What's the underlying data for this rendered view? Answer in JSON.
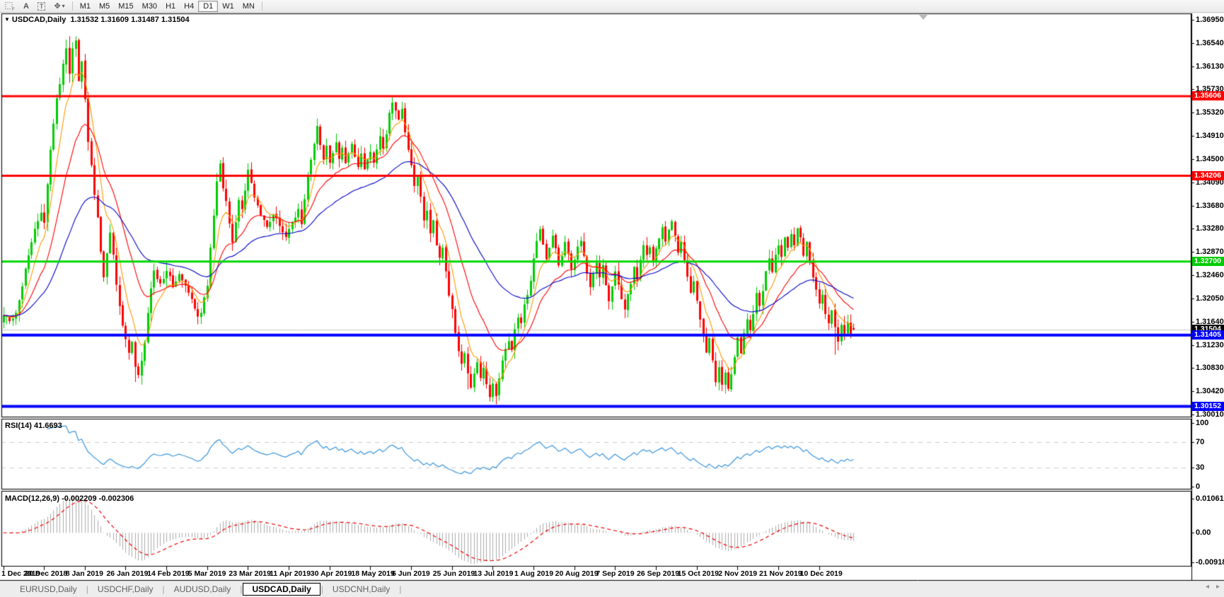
{
  "toolbar": {
    "tool_a_label": "A",
    "tool_t_label": "T",
    "timeframes": [
      "M1",
      "M5",
      "M15",
      "M30",
      "H1",
      "H4",
      "D1",
      "W1",
      "MN"
    ],
    "active_timeframe": "D1"
  },
  "header": {
    "title": "USDCAD,Daily",
    "ohlc": "1.31532 1.31609 1.31487 1.31504"
  },
  "panels": {
    "rsi_label": "RSI(14) 41.6693",
    "macd_label": "MACD(12,26,9) -0.002209 -0.002306"
  },
  "price_axis": {
    "labels": [
      "1.36950",
      "1.36540",
      "1.36130",
      "1.35730",
      "1.35320",
      "1.34910",
      "1.34500",
      "1.34090",
      "1.33680",
      "1.33280",
      "1.32870",
      "1.32460",
      "1.32050",
      "1.31640",
      "1.31230",
      "1.30830",
      "1.30420",
      "1.30010"
    ]
  },
  "rsi_axis": {
    "labels": [
      {
        "text": "100",
        "value": 100
      },
      {
        "text": "70",
        "value": 70
      },
      {
        "text": "30",
        "value": 30
      },
      {
        "text": "0",
        "value": 0
      }
    ]
  },
  "macd_axis": {
    "labels": [
      {
        "text": "0.010615",
        "value": 0.010615
      },
      {
        "text": "0.00",
        "value": 0.0
      },
      {
        "text": "-0.009181",
        "value": -0.009181
      }
    ]
  },
  "time_axis": {
    "labels": [
      "1 Dec 2018",
      "20 Dec 2018",
      "8 Jan 2019",
      "26 Jan 2019",
      "14 Feb 2019",
      "5 Mar 2019",
      "23 Mar 2019",
      "11 Apr 2019",
      "30 Apr 2019",
      "18 May 2019",
      "6 Jun 2019",
      "25 Jun 2019",
      "13 Jul 2019",
      "1 Aug 2019",
      "20 Aug 2019",
      "7 Sep 2019",
      "26 Sep 2019",
      "15 Oct 2019",
      "2 Nov 2019",
      "21 Nov 2019",
      "10 Dec 2019"
    ]
  },
  "tabs": {
    "items": [
      "EURUSD,Daily",
      "USDCHF,Daily",
      "AUDUSD,Daily",
      "USDCAD,Daily",
      "USDCNH,Daily"
    ],
    "active": "USDCAD,Daily"
  },
  "colors": {
    "candle_up": "#00cc00",
    "candle_down": "#ff0000",
    "ma_fast": "#ff9900",
    "ma_medium": "#ff0000",
    "ma_slow": "#0000cc",
    "rsi_line": "#3c96dc",
    "rsi_levels": "#cccccc",
    "macd_histogram": "#ababab",
    "macd_signal": "#ee0000",
    "current_price_line": "#c8c8c8"
  },
  "chart_data": {
    "type": "candlestick",
    "symbol": "USDCAD",
    "timeframe": "Daily",
    "current": {
      "open": 1.31532,
      "high": 1.31609,
      "low": 1.31487,
      "close": 1.31504
    },
    "y_range": [
      1.2996,
      1.3706
    ],
    "x_range": [
      "1 Dec 2018",
      "17 Dec 2019"
    ],
    "candle_count": 272,
    "candles_per_time_tick": 13,
    "horizontal_lines": [
      {
        "price": 1.35606,
        "label": "1.35606",
        "line_color": "#ff0000",
        "badge_bg": "#ff0000",
        "badge_fg": "#ffffff",
        "thickness": 3
      },
      {
        "price": 1.34206,
        "label": "1.34206",
        "line_color": "#ff0000",
        "badge_bg": "#ff0000",
        "badge_fg": "#ffffff",
        "thickness": 3
      },
      {
        "price": 1.327,
        "label": "1.32700",
        "line_color": "#00d800",
        "badge_bg": "#00cc00",
        "badge_fg": "#ffffff",
        "thickness": 3
      },
      {
        "price": 1.31504,
        "label": "1.31504",
        "line_color": "#c8c8c8",
        "badge_bg": "#000000",
        "badge_fg": "#ffffff",
        "thickness": 1
      },
      {
        "price": 1.31405,
        "label": "1.31405",
        "line_color": "#0000ff",
        "badge_bg": "#0000ff",
        "badge_fg": "#ffffff",
        "thickness": 4
      },
      {
        "price": 1.30152,
        "label": "1.30152",
        "line_color": "#0000ff",
        "badge_bg": "#0000ff",
        "badge_fg": "#ffffff",
        "thickness": 4
      }
    ],
    "close_waypoints": [
      [
        0,
        1.3175
      ],
      [
        2,
        1.3165
      ],
      [
        4,
        1.318
      ],
      [
        6,
        1.323
      ],
      [
        8,
        1.328
      ],
      [
        10,
        1.333
      ],
      [
        12,
        1.3355
      ],
      [
        13,
        1.3335
      ],
      [
        15,
        1.347
      ],
      [
        17,
        1.3555
      ],
      [
        19,
        1.3615
      ],
      [
        20,
        1.3648
      ],
      [
        21,
        1.3598
      ],
      [
        22,
        1.3642
      ],
      [
        23,
        1.3655
      ],
      [
        24,
        1.3588
      ],
      [
        25,
        1.3625
      ],
      [
        26,
        1.3555
      ],
      [
        27,
        1.348
      ],
      [
        28,
        1.344
      ],
      [
        29,
        1.3385
      ],
      [
        30,
        1.335
      ],
      [
        31,
        1.329
      ],
      [
        32,
        1.3245
      ],
      [
        33,
        1.3285
      ],
      [
        34,
        1.332
      ],
      [
        35,
        1.328
      ],
      [
        36,
        1.323
      ],
      [
        37,
        1.319
      ],
      [
        38,
        1.3155
      ],
      [
        39,
        1.313
      ],
      [
        40,
        1.3105
      ],
      [
        41,
        1.313
      ],
      [
        42,
        1.3082
      ],
      [
        43,
        1.3068
      ],
      [
        44,
        1.3095
      ],
      [
        45,
        1.313
      ],
      [
        46,
        1.318
      ],
      [
        47,
        1.322
      ],
      [
        48,
        1.325
      ],
      [
        50,
        1.3228
      ],
      [
        52,
        1.3255
      ],
      [
        54,
        1.3228
      ],
      [
        56,
        1.325
      ],
      [
        58,
        1.3228
      ],
      [
        60,
        1.32
      ],
      [
        62,
        1.3172
      ],
      [
        63,
        1.318
      ],
      [
        64,
        1.3208
      ],
      [
        65,
        1.3228
      ],
      [
        66,
        1.329
      ],
      [
        67,
        1.3355
      ],
      [
        68,
        1.3415
      ],
      [
        69,
        1.344
      ],
      [
        70,
        1.3402
      ],
      [
        71,
        1.3372
      ],
      [
        72,
        1.3335
      ],
      [
        73,
        1.3302
      ],
      [
        74,
        1.3338
      ],
      [
        75,
        1.3378
      ],
      [
        76,
        1.3358
      ],
      [
        77,
        1.3398
      ],
      [
        78,
        1.3428
      ],
      [
        79,
        1.3408
      ],
      [
        80,
        1.3382
      ],
      [
        82,
        1.3352
      ],
      [
        84,
        1.3332
      ],
      [
        86,
        1.3355
      ],
      [
        88,
        1.3332
      ],
      [
        90,
        1.3312
      ],
      [
        92,
        1.3338
      ],
      [
        94,
        1.3358
      ],
      [
        95,
        1.3338
      ],
      [
        96,
        1.3378
      ],
      [
        97,
        1.3418
      ],
      [
        98,
        1.3448
      ],
      [
        99,
        1.3478
      ],
      [
        100,
        1.3505
      ],
      [
        101,
        1.3478
      ],
      [
        102,
        1.3452
      ],
      [
        103,
        1.3472
      ],
      [
        104,
        1.3442
      ],
      [
        105,
        1.3462
      ],
      [
        106,
        1.3478
      ],
      [
        107,
        1.3452
      ],
      [
        108,
        1.3472
      ],
      [
        109,
        1.3442
      ],
      [
        110,
        1.3462
      ],
      [
        111,
        1.3478
      ],
      [
        112,
        1.3458
      ],
      [
        113,
        1.3438
      ],
      [
        114,
        1.3462
      ],
      [
        115,
        1.3432
      ],
      [
        116,
        1.3452
      ],
      [
        117,
        1.3462
      ],
      [
        118,
        1.3442
      ],
      [
        119,
        1.3468
      ],
      [
        120,
        1.3488
      ],
      [
        121,
        1.3468
      ],
      [
        122,
        1.3492
      ],
      [
        123,
        1.3528
      ],
      [
        124,
        1.3552
      ],
      [
        125,
        1.3538
      ],
      [
        126,
        1.3518
      ],
      [
        127,
        1.3538
      ],
      [
        128,
        1.3498
      ],
      [
        129,
        1.3468
      ],
      [
        130,
        1.3438
      ],
      [
        131,
        1.3402
      ],
      [
        132,
        1.3422
      ],
      [
        133,
        1.3382
      ],
      [
        134,
        1.3342
      ],
      [
        135,
        1.3362
      ],
      [
        136,
        1.3322
      ],
      [
        137,
        1.3342
      ],
      [
        138,
        1.3302
      ],
      [
        139,
        1.3272
      ],
      [
        140,
        1.3292
      ],
      [
        141,
        1.3252
      ],
      [
        142,
        1.3212
      ],
      [
        143,
        1.3182
      ],
      [
        144,
        1.3142
      ],
      [
        145,
        1.3112
      ],
      [
        146,
        1.3092
      ],
      [
        147,
        1.3112
      ],
      [
        148,
        1.3072
      ],
      [
        149,
        1.3052
      ],
      [
        150,
        1.3072
      ],
      [
        151,
        1.3092
      ],
      [
        152,
        1.3062
      ],
      [
        153,
        1.3082
      ],
      [
        154,
        1.3052
      ],
      [
        155,
        1.3032
      ],
      [
        156,
        1.3052
      ],
      [
        157,
        1.3032
      ],
      [
        158,
        1.3062
      ],
      [
        159,
        1.3092
      ],
      [
        160,
        1.3112
      ],
      [
        161,
        1.3132
      ],
      [
        162,
        1.3112
      ],
      [
        163,
        1.3152
      ],
      [
        164,
        1.3172
      ],
      [
        165,
        1.3162
      ],
      [
        166,
        1.3192
      ],
      [
        167,
        1.3212
      ],
      [
        168,
        1.3232
      ],
      [
        169,
        1.3272
      ],
      [
        170,
        1.3302
      ],
      [
        171,
        1.3328
      ],
      [
        172,
        1.3302
      ],
      [
        173,
        1.3272
      ],
      [
        174,
        1.3292
      ],
      [
        175,
        1.3318
      ],
      [
        176,
        1.3292
      ],
      [
        177,
        1.3262
      ],
      [
        178,
        1.3282
      ],
      [
        179,
        1.3302
      ],
      [
        180,
        1.3282
      ],
      [
        181,
        1.3252
      ],
      [
        182,
        1.3272
      ],
      [
        183,
        1.3292
      ],
      [
        184,
        1.3308
      ],
      [
        185,
        1.3282
      ],
      [
        186,
        1.3252
      ],
      [
        187,
        1.3222
      ],
      [
        188,
        1.3252
      ],
      [
        189,
        1.3272
      ],
      [
        190,
        1.3242
      ],
      [
        191,
        1.3262
      ],
      [
        192,
        1.3232
      ],
      [
        193,
        1.3202
      ],
      [
        194,
        1.3222
      ],
      [
        195,
        1.3252
      ],
      [
        196,
        1.3232
      ],
      [
        197,
        1.3202
      ],
      [
        198,
        1.3182
      ],
      [
        199,
        1.3212
      ],
      [
        200,
        1.3232
      ],
      [
        201,
        1.3262
      ],
      [
        202,
        1.3242
      ],
      [
        203,
        1.3272
      ],
      [
        204,
        1.3298
      ],
      [
        205,
        1.3278
      ],
      [
        206,
        1.3298
      ],
      [
        207,
        1.3272
      ],
      [
        208,
        1.3292
      ],
      [
        209,
        1.3312
      ],
      [
        210,
        1.3328
      ],
      [
        211,
        1.3302
      ],
      [
        212,
        1.3322
      ],
      [
        213,
        1.3338
      ],
      [
        214,
        1.3312
      ],
      [
        215,
        1.3282
      ],
      [
        216,
        1.3302
      ],
      [
        217,
        1.3272
      ],
      [
        218,
        1.3242
      ],
      [
        219,
        1.3212
      ],
      [
        220,
        1.3232
      ],
      [
        221,
        1.3202
      ],
      [
        222,
        1.3172
      ],
      [
        223,
        1.3142
      ],
      [
        224,
        1.3112
      ],
      [
        225,
        1.3132
      ],
      [
        226,
        1.3092
      ],
      [
        227,
        1.3062
      ],
      [
        228,
        1.3082
      ],
      [
        229,
        1.3052
      ],
      [
        230,
        1.3072
      ],
      [
        231,
        1.3048
      ],
      [
        232,
        1.3072
      ],
      [
        233,
        1.3102
      ],
      [
        234,
        1.3132
      ],
      [
        235,
        1.3112
      ],
      [
        236,
        1.3142
      ],
      [
        237,
        1.3172
      ],
      [
        238,
        1.3152
      ],
      [
        239,
        1.3182
      ],
      [
        240,
        1.3212
      ],
      [
        241,
        1.3192
      ],
      [
        242,
        1.3222
      ],
      [
        243,
        1.3252
      ],
      [
        244,
        1.3272
      ],
      [
        245,
        1.3252
      ],
      [
        246,
        1.3282
      ],
      [
        247,
        1.3302
      ],
      [
        248,
        1.3282
      ],
      [
        249,
        1.3312
      ],
      [
        250,
        1.3292
      ],
      [
        251,
        1.3318
      ],
      [
        252,
        1.3298
      ],
      [
        253,
        1.3328
      ],
      [
        254,
        1.3308
      ],
      [
        255,
        1.3282
      ],
      [
        256,
        1.3302
      ],
      [
        257,
        1.3272
      ],
      [
        258,
        1.3242
      ],
      [
        259,
        1.3222
      ],
      [
        260,
        1.3192
      ],
      [
        261,
        1.3212
      ],
      [
        262,
        1.3182
      ],
      [
        263,
        1.3162
      ],
      [
        264,
        1.3182
      ],
      [
        265,
        1.3152
      ],
      [
        266,
        1.3132
      ],
      [
        267,
        1.3162
      ],
      [
        268,
        1.3142
      ],
      [
        269,
        1.3162
      ],
      [
        270,
        1.3142
      ],
      [
        271,
        1.315
      ]
    ],
    "spikes": [
      [
        21,
        "h",
        1.3666
      ],
      [
        23,
        "h",
        1.366
      ],
      [
        42,
        "l",
        1.3058
      ],
      [
        124,
        "h",
        1.3561
      ],
      [
        148,
        "l",
        1.3045
      ],
      [
        155,
        "l",
        1.3024
      ],
      [
        157,
        "l",
        1.3019
      ],
      [
        231,
        "l",
        1.3042
      ],
      [
        265,
        "l",
        1.3106
      ]
    ],
    "overlays": [
      {
        "name": "MA-fast",
        "period": 7,
        "color": "#ff9900"
      },
      {
        "name": "MA-medium",
        "period": 18,
        "color": "#ff0000"
      },
      {
        "name": "MA-slow",
        "period": 45,
        "color": "#0000cc"
      }
    ],
    "rsi": {
      "period": 14,
      "current": 41.6693,
      "levels": [
        70,
        30
      ],
      "range": [
        0,
        100
      ]
    },
    "macd": {
      "fast": 12,
      "slow": 26,
      "signal_period": 9,
      "current_macd": -0.002209,
      "current_signal": -0.002306,
      "range": [
        -0.009181,
        0.010615
      ]
    }
  }
}
